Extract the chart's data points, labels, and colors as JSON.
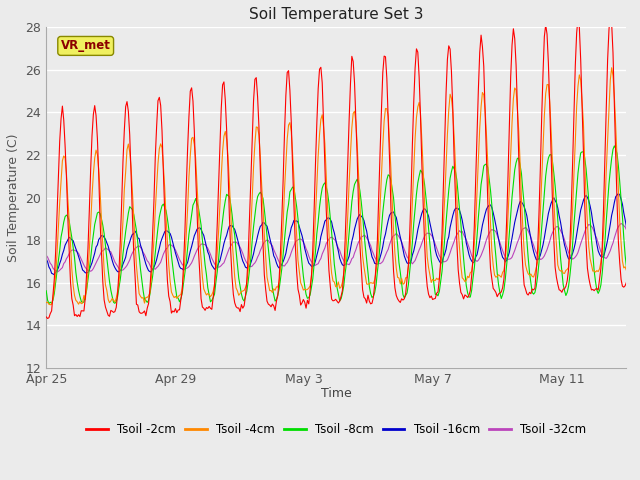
{
  "title": "Soil Temperature Set 3",
  "xlabel": "Time",
  "ylabel": "Soil Temperature (C)",
  "ylim": [
    12,
    28
  ],
  "yticks": [
    12,
    14,
    16,
    18,
    20,
    22,
    24,
    26,
    28
  ],
  "background_color": "#ebebeb",
  "series_colors": {
    "Tsoil -2cm": "#ff0000",
    "Tsoil -4cm": "#ff8800",
    "Tsoil -8cm": "#00dd00",
    "Tsoil -16cm": "#0000cc",
    "Tsoil -32cm": "#bb44bb"
  },
  "annotation_text": "VR_met",
  "xtick_labels": [
    "Apr 25",
    "Apr 29",
    "May 3",
    "May 7",
    "May 11"
  ],
  "xtick_positions": [
    0,
    4,
    8,
    12,
    16
  ],
  "xlim": [
    0,
    18
  ]
}
